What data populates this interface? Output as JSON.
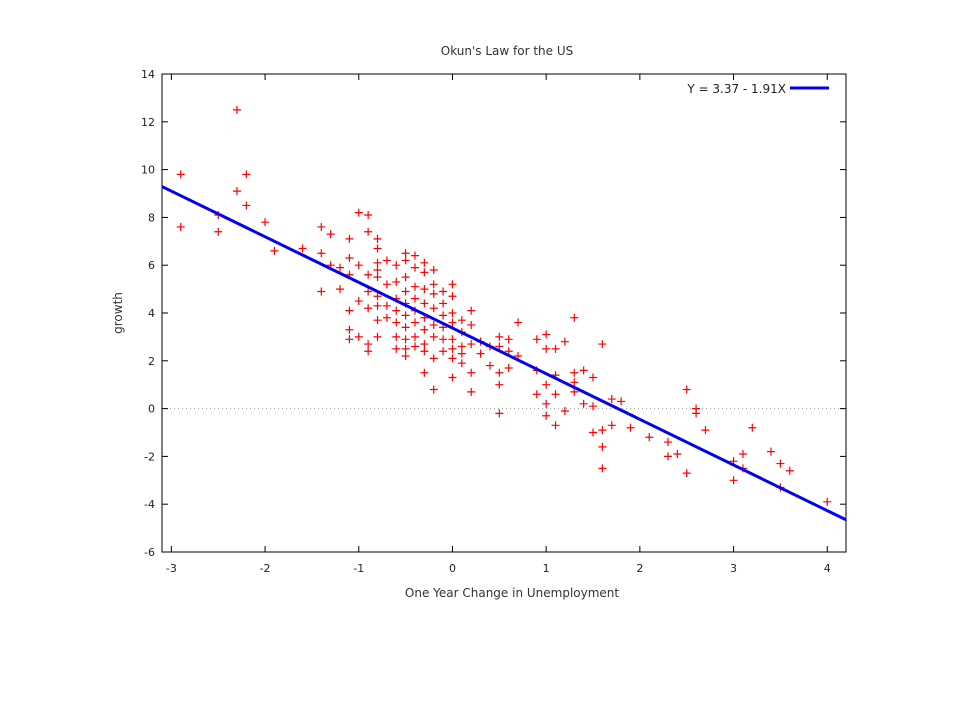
{
  "chart_data": {
    "type": "scatter",
    "title": "Okun's Law for the US",
    "xlabel": "One Year Change in Unemployment",
    "ylabel": "growth",
    "xlim": [
      -3.1,
      4.2
    ],
    "ylim": [
      -6,
      14
    ],
    "xticks": [
      -3,
      -2,
      -1,
      0,
      1,
      2,
      3,
      4
    ],
    "yticks": [
      -6,
      -4,
      -2,
      0,
      2,
      4,
      6,
      8,
      10,
      12,
      14
    ],
    "grid": false,
    "zero_line": true,
    "legend": {
      "placement": "top-right",
      "label": "Y = 3.37 - 1.91X"
    },
    "colors": {
      "points": "#ff0000",
      "fit": "#0000ee",
      "zero_line": "#999999",
      "axis": "#000000"
    },
    "fit_line": {
      "intercept": 3.37,
      "slope": -1.91
    },
    "series": [
      {
        "kind": "points",
        "points": [
          [
            -2.9,
            9.8
          ],
          [
            -2.9,
            7.6
          ],
          [
            -2.5,
            8.1
          ],
          [
            -2.5,
            7.4
          ],
          [
            -2.3,
            12.5
          ],
          [
            -2.3,
            9.1
          ],
          [
            -2.2,
            9.8
          ],
          [
            -2.2,
            8.5
          ],
          [
            -2.0,
            7.8
          ],
          [
            -1.9,
            6.6
          ],
          [
            -1.6,
            6.7
          ],
          [
            -1.4,
            7.6
          ],
          [
            -1.4,
            6.5
          ],
          [
            -1.4,
            4.9
          ],
          [
            -1.3,
            7.3
          ],
          [
            -1.3,
            6.0
          ],
          [
            -1.2,
            5.9
          ],
          [
            -1.2,
            5.0
          ],
          [
            -1.1,
            7.1
          ],
          [
            -1.1,
            6.3
          ],
          [
            -1.1,
            5.6
          ],
          [
            -1.1,
            4.1
          ],
          [
            -1.1,
            3.3
          ],
          [
            -1.1,
            2.9
          ],
          [
            -1.0,
            8.2
          ],
          [
            -1.0,
            6.0
          ],
          [
            -1.0,
            4.5
          ],
          [
            -1.0,
            3.0
          ],
          [
            -0.9,
            8.1
          ],
          [
            -0.9,
            7.4
          ],
          [
            -0.9,
            5.6
          ],
          [
            -0.9,
            4.9
          ],
          [
            -0.9,
            4.2
          ],
          [
            -0.9,
            2.7
          ],
          [
            -0.9,
            2.4
          ],
          [
            -0.8,
            7.1
          ],
          [
            -0.8,
            6.7
          ],
          [
            -0.8,
            6.1
          ],
          [
            -0.8,
            5.8
          ],
          [
            -0.8,
            5.5
          ],
          [
            -0.8,
            4.7
          ],
          [
            -0.8,
            4.3
          ],
          [
            -0.8,
            3.7
          ],
          [
            -0.8,
            3.0
          ],
          [
            -0.7,
            6.2
          ],
          [
            -0.7,
            5.2
          ],
          [
            -0.7,
            4.3
          ],
          [
            -0.7,
            3.8
          ],
          [
            -0.6,
            6.0
          ],
          [
            -0.6,
            5.3
          ],
          [
            -0.6,
            4.6
          ],
          [
            -0.6,
            4.1
          ],
          [
            -0.6,
            3.6
          ],
          [
            -0.6,
            3.0
          ],
          [
            -0.6,
            2.5
          ],
          [
            -0.5,
            6.5
          ],
          [
            -0.5,
            6.2
          ],
          [
            -0.5,
            5.5
          ],
          [
            -0.5,
            4.9
          ],
          [
            -0.5,
            4.4
          ],
          [
            -0.5,
            3.9
          ],
          [
            -0.5,
            3.4
          ],
          [
            -0.5,
            2.9
          ],
          [
            -0.5,
            2.5
          ],
          [
            -0.5,
            2.2
          ],
          [
            -0.4,
            6.4
          ],
          [
            -0.4,
            5.9
          ],
          [
            -0.4,
            5.1
          ],
          [
            -0.4,
            4.6
          ],
          [
            -0.4,
            4.1
          ],
          [
            -0.4,
            3.6
          ],
          [
            -0.4,
            3.0
          ],
          [
            -0.4,
            2.6
          ],
          [
            -0.3,
            6.1
          ],
          [
            -0.3,
            5.7
          ],
          [
            -0.3,
            5.0
          ],
          [
            -0.3,
            4.4
          ],
          [
            -0.3,
            3.8
          ],
          [
            -0.3,
            3.3
          ],
          [
            -0.3,
            2.7
          ],
          [
            -0.3,
            2.4
          ],
          [
            -0.3,
            1.5
          ],
          [
            -0.2,
            5.8
          ],
          [
            -0.2,
            5.2
          ],
          [
            -0.2,
            4.8
          ],
          [
            -0.2,
            4.2
          ],
          [
            -0.2,
            3.5
          ],
          [
            -0.2,
            3.0
          ],
          [
            -0.2,
            2.1
          ],
          [
            -0.2,
            0.8
          ],
          [
            -0.1,
            4.9
          ],
          [
            -0.1,
            4.4
          ],
          [
            -0.1,
            3.9
          ],
          [
            -0.1,
            3.4
          ],
          [
            -0.1,
            2.9
          ],
          [
            -0.1,
            2.4
          ],
          [
            0.0,
            5.2
          ],
          [
            0.0,
            4.7
          ],
          [
            0.0,
            4.0
          ],
          [
            0.0,
            3.6
          ],
          [
            0.0,
            2.9
          ],
          [
            0.0,
            2.5
          ],
          [
            0.0,
            2.1
          ],
          [
            0.0,
            1.3
          ],
          [
            0.1,
            3.7
          ],
          [
            0.1,
            3.2
          ],
          [
            0.1,
            2.6
          ],
          [
            0.1,
            2.3
          ],
          [
            0.1,
            1.9
          ],
          [
            0.2,
            4.1
          ],
          [
            0.2,
            3.5
          ],
          [
            0.2,
            2.7
          ],
          [
            0.2,
            1.5
          ],
          [
            0.2,
            0.7
          ],
          [
            0.3,
            2.8
          ],
          [
            0.3,
            2.3
          ],
          [
            0.4,
            2.6
          ],
          [
            0.4,
            1.8
          ],
          [
            0.5,
            3.0
          ],
          [
            0.5,
            2.6
          ],
          [
            0.5,
            1.5
          ],
          [
            0.5,
            1.0
          ],
          [
            0.5,
            -0.2
          ],
          [
            0.6,
            2.9
          ],
          [
            0.6,
            2.4
          ],
          [
            0.6,
            1.7
          ],
          [
            0.7,
            3.6
          ],
          [
            0.7,
            2.2
          ],
          [
            0.9,
            2.9
          ],
          [
            0.9,
            1.6
          ],
          [
            0.9,
            0.6
          ],
          [
            1.0,
            3.1
          ],
          [
            1.0,
            2.5
          ],
          [
            1.0,
            1.0
          ],
          [
            1.0,
            0.2
          ],
          [
            1.0,
            -0.3
          ],
          [
            1.1,
            2.5
          ],
          [
            1.1,
            1.4
          ],
          [
            1.1,
            0.6
          ],
          [
            1.1,
            -0.7
          ],
          [
            1.2,
            2.8
          ],
          [
            1.2,
            -0.1
          ],
          [
            1.3,
            3.8
          ],
          [
            1.3,
            1.5
          ],
          [
            1.3,
            1.1
          ],
          [
            1.3,
            0.7
          ],
          [
            1.4,
            1.6
          ],
          [
            1.4,
            0.2
          ],
          [
            1.5,
            1.3
          ],
          [
            1.5,
            0.1
          ],
          [
            1.5,
            -1.0
          ],
          [
            1.6,
            2.7
          ],
          [
            1.6,
            -0.9
          ],
          [
            1.6,
            -1.6
          ],
          [
            1.6,
            -2.5
          ],
          [
            1.7,
            0.4
          ],
          [
            1.7,
            -0.7
          ],
          [
            1.8,
            0.3
          ],
          [
            1.9,
            -0.8
          ],
          [
            2.1,
            -1.2
          ],
          [
            2.3,
            -1.4
          ],
          [
            2.3,
            -2.0
          ],
          [
            2.4,
            -1.9
          ],
          [
            2.5,
            0.8
          ],
          [
            2.5,
            -2.7
          ],
          [
            2.6,
            0.0
          ],
          [
            2.6,
            -0.2
          ],
          [
            2.7,
            -0.9
          ],
          [
            3.0,
            -2.2
          ],
          [
            3.0,
            -3.0
          ],
          [
            3.1,
            -1.9
          ],
          [
            3.1,
            -2.5
          ],
          [
            3.2,
            -0.8
          ],
          [
            3.4,
            -1.8
          ],
          [
            3.5,
            -2.3
          ],
          [
            3.5,
            -3.3
          ],
          [
            3.6,
            -2.6
          ],
          [
            4.0,
            -3.9
          ]
        ]
      }
    ]
  }
}
